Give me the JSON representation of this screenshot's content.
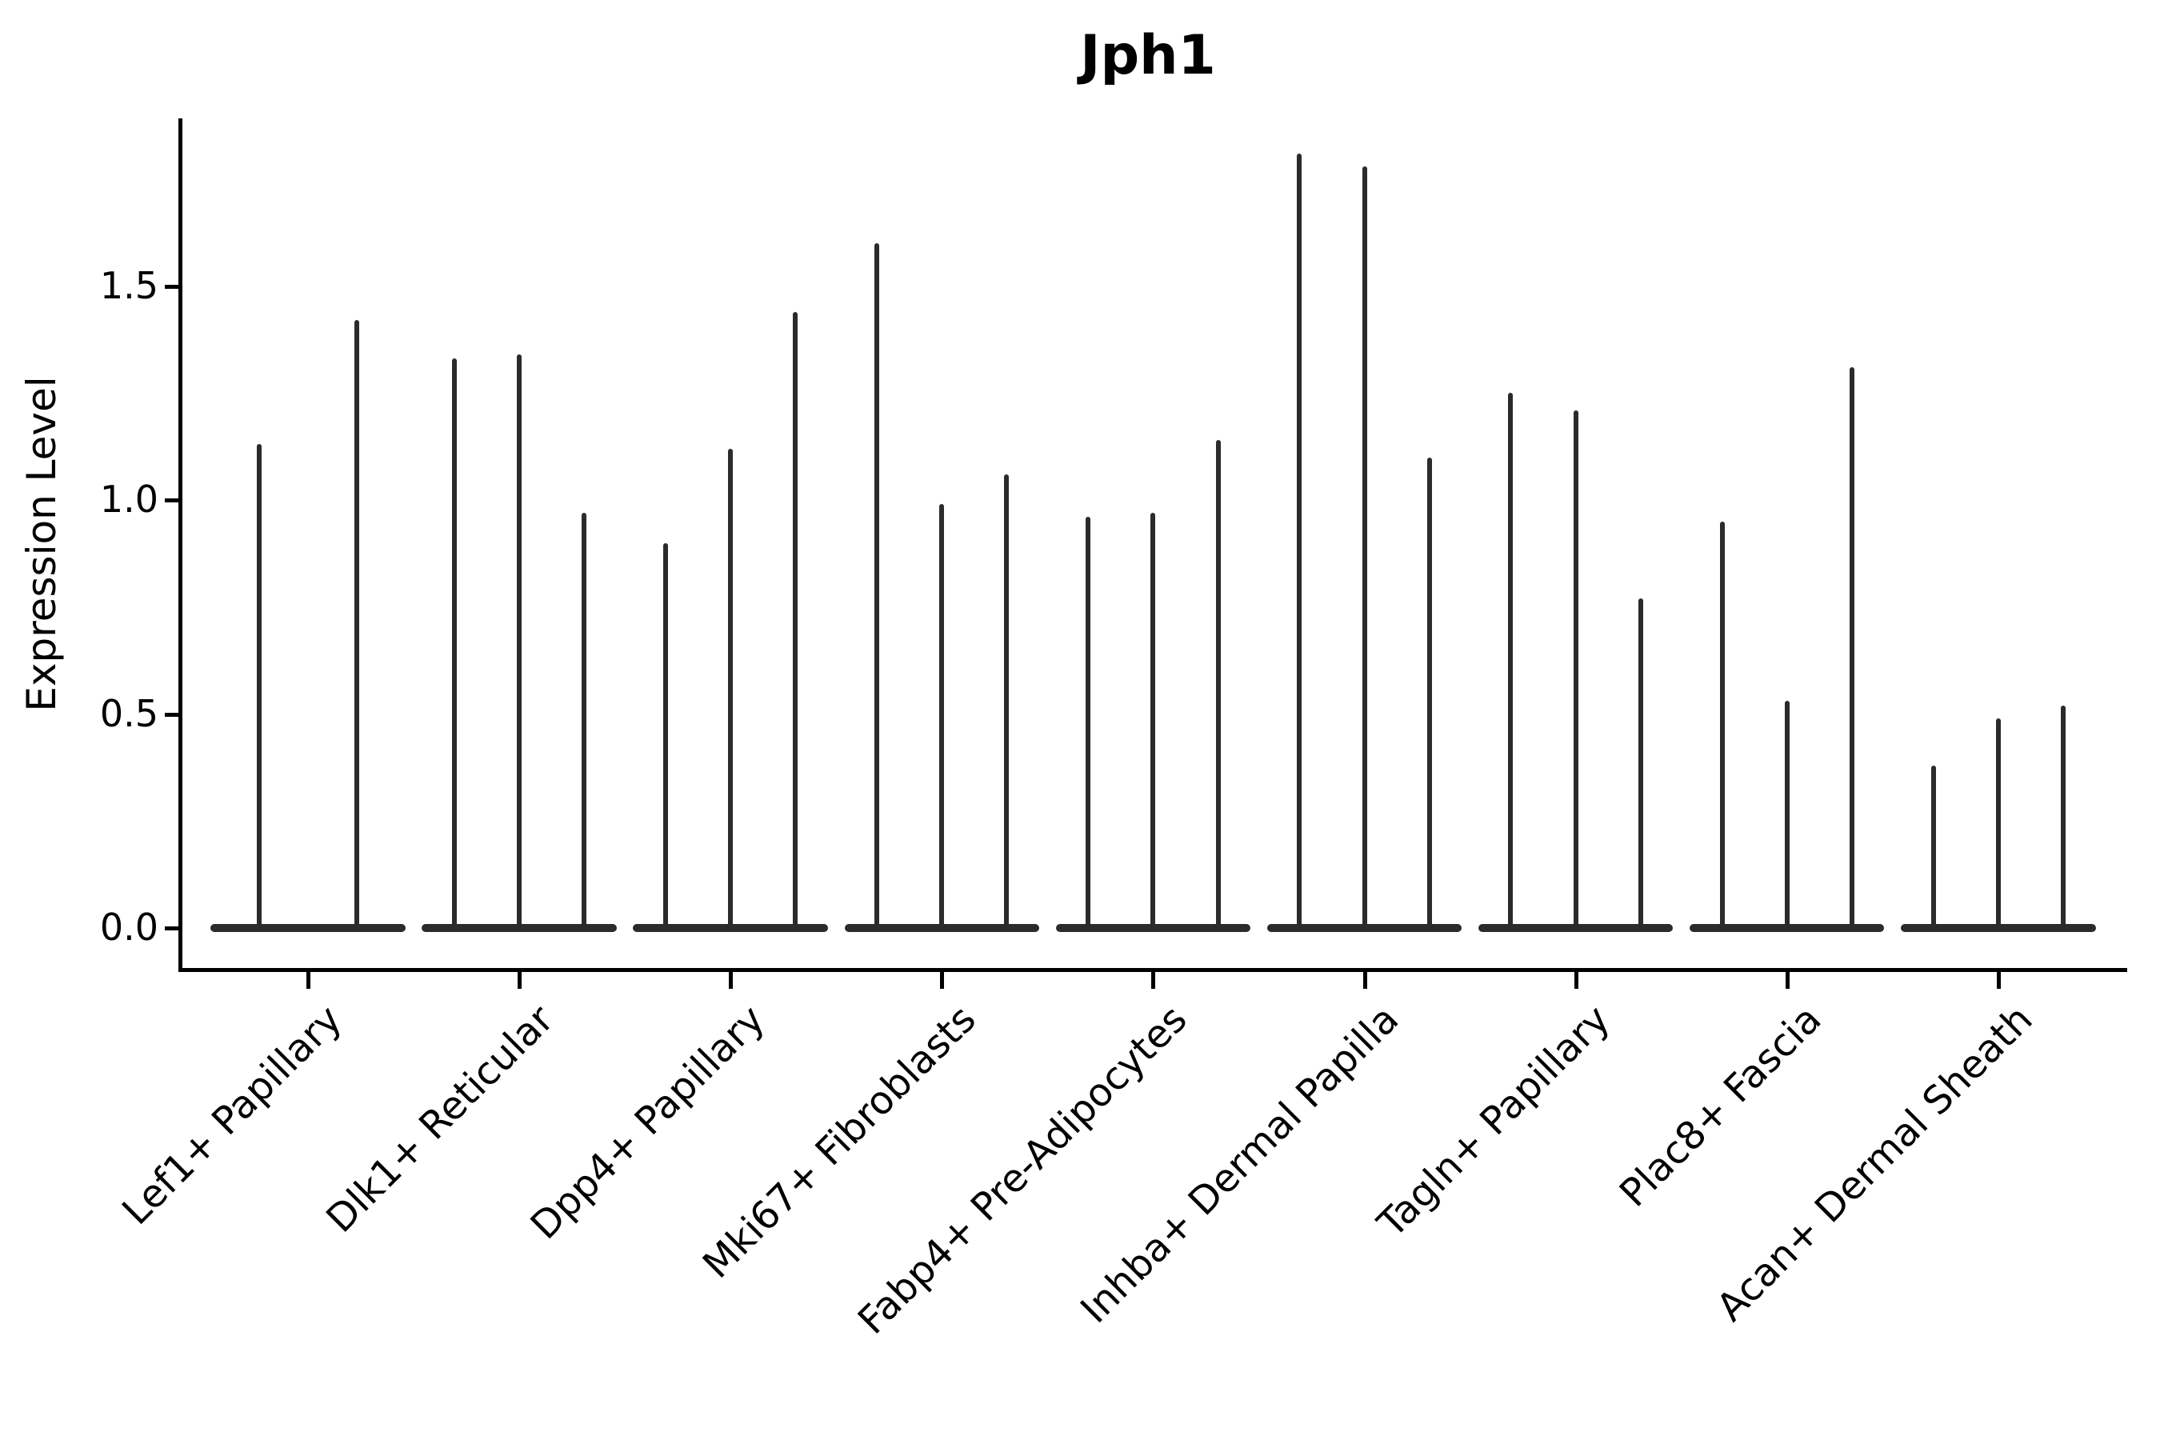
{
  "chart_data": {
    "type": "violin",
    "title": "Jph1",
    "ylabel": "Expression Level",
    "xlabel": "",
    "yticks": [
      0,
      0.5,
      1.0,
      1.5
    ],
    "ytick_labels": [
      "0.0",
      "0.5",
      "1.0",
      "1.5"
    ],
    "ylim": [
      -0.09,
      1.89
    ],
    "grid": false,
    "legend": "none",
    "line_color": "#2b2b2b",
    "axis_color": "#000000",
    "categories": [
      "Lef1+ Papillary",
      "Dlk1+ Reticular",
      "Dpp4+ Papillary",
      "Mki67+ Fibroblasts",
      "Fabp4+ Pre-Adipocytes",
      "Inhba+ Dermal Papilla",
      "Tagln+ Papillary",
      "Plac8+ Fascia",
      "Acan+ Dermal Sheath"
    ],
    "groups": [
      {
        "category": "Lef1+ Papillary",
        "violin_max_expression": [
          1.13,
          1.42
        ]
      },
      {
        "category": "Dlk1+ Reticular",
        "violin_max_expression": [
          1.33,
          1.34,
          0.97
        ]
      },
      {
        "category": "Dpp4+ Papillary",
        "violin_max_expression": [
          0.9,
          1.12,
          1.44
        ]
      },
      {
        "category": "Mki67+ Fibroblasts",
        "violin_max_expression": [
          1.6,
          0.99,
          1.06
        ]
      },
      {
        "category": "Fabp4+ Pre-Adipocytes",
        "violin_max_expression": [
          0.96,
          0.97,
          1.14
        ]
      },
      {
        "category": "Inhba+ Dermal Papilla",
        "violin_max_expression": [
          1.81,
          1.78,
          1.1
        ]
      },
      {
        "category": "Tagln+ Papillary",
        "violin_max_expression": [
          1.25,
          1.21,
          0.77
        ]
      },
      {
        "category": "Plac8+ Fascia",
        "violin_max_expression": [
          0.95,
          0.53,
          1.31
        ]
      },
      {
        "category": "Acan+ Dermal Sheath",
        "violin_max_expression": [
          0.38,
          0.49,
          0.52
        ]
      }
    ]
  }
}
